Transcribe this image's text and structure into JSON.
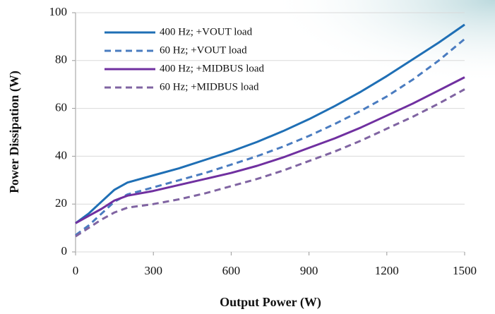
{
  "chart_data": {
    "type": "line",
    "x_label": "Output Power (W)",
    "y_label": "Power Dissipation (W)",
    "x": [
      0,
      50,
      100,
      150,
      200,
      300,
      400,
      500,
      600,
      700,
      800,
      900,
      1000,
      1100,
      1200,
      1300,
      1400,
      1500
    ],
    "series": [
      {
        "name": "400 Hz; +VOUT load",
        "color": "#1f6fb5",
        "dash": false,
        "values": [
          12,
          16,
          21,
          26,
          29,
          32,
          35,
          38.5,
          42,
          46,
          50.5,
          55.5,
          61,
          67,
          73.5,
          80.5,
          87.5,
          95
        ]
      },
      {
        "name": "60 Hz; +VOUT load",
        "color": "#4a7cc0",
        "dash": true,
        "values": [
          7,
          11,
          16,
          21,
          24,
          27,
          30,
          33,
          36.5,
          40,
          44,
          48.5,
          53.5,
          59,
          65,
          72,
          80,
          89
        ]
      },
      {
        "name": "400 Hz; +MIDBUS load",
        "color": "#7030a0",
        "dash": false,
        "values": [
          12,
          15,
          18,
          21.5,
          23.5,
          25.5,
          28,
          30.5,
          33,
          36,
          39.5,
          43.5,
          47.5,
          52,
          57,
          62,
          67.5,
          73
        ]
      },
      {
        "name": "60 Hz; +MIDBUS load",
        "color": "#8064a2",
        "dash": true,
        "values": [
          6.5,
          10,
          13.5,
          16.5,
          18.5,
          20,
          22,
          24.5,
          27.5,
          30.5,
          34,
          38,
          42,
          46.5,
          51.5,
          56.5,
          62,
          68
        ]
      }
    ],
    "xlim": [
      0,
      1500
    ],
    "xticks": [
      0,
      300,
      600,
      900,
      1200,
      1500
    ],
    "ylim": [
      0,
      100
    ],
    "yticks": [
      0,
      20,
      40,
      60,
      80,
      100
    ],
    "grid": true,
    "legend": "upper-left"
  }
}
